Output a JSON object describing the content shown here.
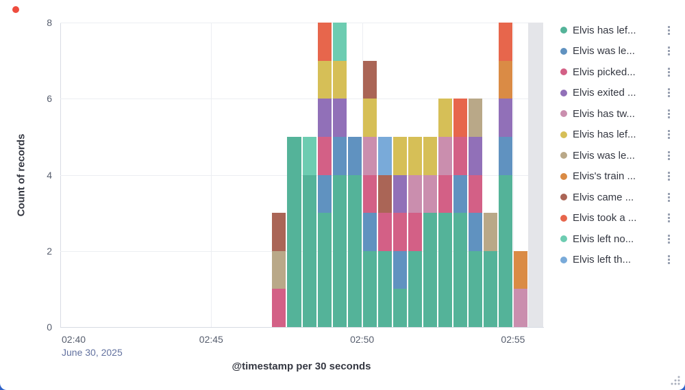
{
  "window": {
    "background_corner_color": "#2e62c9",
    "record_dot_color": "#ee4c3e"
  },
  "chart_data": {
    "type": "bar",
    "stacked": true,
    "title": "",
    "xlabel": "@timestamp per 30 seconds",
    "ylabel": "Count of records",
    "ylim": [
      0,
      8
    ],
    "y_ticks": [
      0,
      2,
      4,
      6,
      8
    ],
    "grid": true,
    "legend_position": "right",
    "x_axis_minutes": 16,
    "bucket_seconds": 30,
    "x_ticks": [
      {
        "label": "02:40",
        "minute": 0,
        "sub_label": "June 30, 2025"
      },
      {
        "label": "02:45",
        "minute": 5
      },
      {
        "label": "02:50",
        "minute": 10
      },
      {
        "label": "02:55",
        "minute": 15
      }
    ],
    "series": [
      {
        "name": "Elvis has lef...",
        "color": "#54B399"
      },
      {
        "name": "Elvis was le...",
        "color": "#6092C0"
      },
      {
        "name": "Elvis picked...",
        "color": "#D36086"
      },
      {
        "name": "Elvis exited ...",
        "color": "#9170B8"
      },
      {
        "name": "Elvis has tw...",
        "color": "#CA8EAE"
      },
      {
        "name": "Elvis has lef...",
        "color": "#D6BF57"
      },
      {
        "name": "Elvis was le...",
        "color": "#B9A888"
      },
      {
        "name": "Elvis's train ...",
        "color": "#DA8B45"
      },
      {
        "name": "Elvis came ...",
        "color": "#AA6556"
      },
      {
        "name": "Elvis took a ...",
        "color": "#E7664C"
      },
      {
        "name": "Elvis left no...",
        "color": "#6DCCB1"
      },
      {
        "name": "Elvis left th...",
        "color": "#79AAD9"
      }
    ],
    "buckets": [
      {
        "start_minute": 7.0,
        "values": [
          0,
          0,
          1,
          0,
          0,
          0,
          1,
          0,
          1,
          0,
          0,
          0
        ]
      },
      {
        "start_minute": 7.5,
        "values": [
          5,
          0,
          0,
          0,
          0,
          0,
          0,
          0,
          0,
          0,
          0,
          0
        ]
      },
      {
        "start_minute": 8.0,
        "values": [
          4,
          0,
          0,
          0,
          0,
          0,
          0,
          0,
          0,
          0,
          1,
          0
        ]
      },
      {
        "start_minute": 8.5,
        "values": [
          3,
          1,
          1,
          1,
          0,
          1,
          0,
          0,
          0,
          1,
          0,
          0
        ]
      },
      {
        "start_minute": 9.0,
        "values": [
          4,
          1,
          0,
          1,
          0,
          1,
          0,
          0,
          0,
          0,
          1,
          0
        ]
      },
      {
        "start_minute": 9.5,
        "values": [
          4,
          1,
          0,
          0,
          0,
          0,
          0,
          0,
          0,
          0,
          0,
          0
        ]
      },
      {
        "start_minute": 10.0,
        "values": [
          2,
          1,
          1,
          0,
          1,
          1,
          0,
          0,
          1,
          0,
          0,
          0
        ]
      },
      {
        "start_minute": 10.5,
        "values": [
          2,
          0,
          1,
          0,
          0,
          0,
          0,
          0,
          1,
          0,
          0,
          1
        ]
      },
      {
        "start_minute": 11.0,
        "values": [
          1,
          1,
          1,
          1,
          0,
          1,
          0,
          0,
          0,
          0,
          0,
          0
        ]
      },
      {
        "start_minute": 11.5,
        "values": [
          2,
          0,
          1,
          0,
          1,
          1,
          0,
          0,
          0,
          0,
          0,
          0
        ]
      },
      {
        "start_minute": 12.0,
        "values": [
          3,
          0,
          0,
          0,
          1,
          1,
          0,
          0,
          0,
          0,
          0,
          0
        ]
      },
      {
        "start_minute": 12.5,
        "values": [
          3,
          0,
          1,
          0,
          1,
          1,
          0,
          0,
          0,
          0,
          0,
          0
        ]
      },
      {
        "start_minute": 13.0,
        "values": [
          3,
          1,
          1,
          0,
          0,
          0,
          0,
          0,
          0,
          1,
          0,
          0
        ]
      },
      {
        "start_minute": 13.5,
        "values": [
          2,
          1,
          1,
          1,
          0,
          0,
          1,
          0,
          0,
          0,
          0,
          0
        ]
      },
      {
        "start_minute": 14.0,
        "values": [
          2,
          0,
          0,
          0,
          0,
          0,
          1,
          0,
          0,
          0,
          0,
          0
        ]
      },
      {
        "start_minute": 14.5,
        "values": [
          4,
          1,
          0,
          1,
          0,
          0,
          0,
          1,
          0,
          1,
          0,
          0
        ]
      },
      {
        "start_minute": 15.0,
        "values": [
          0,
          0,
          0,
          0,
          1,
          0,
          0,
          1,
          0,
          0,
          0,
          0
        ]
      }
    ],
    "partial_bucket": {
      "start_minute": 15.5,
      "end_minute": 16,
      "color": "#e4e5e9"
    }
  },
  "legend": {
    "action_icon": "boxes-vertical-icon"
  }
}
